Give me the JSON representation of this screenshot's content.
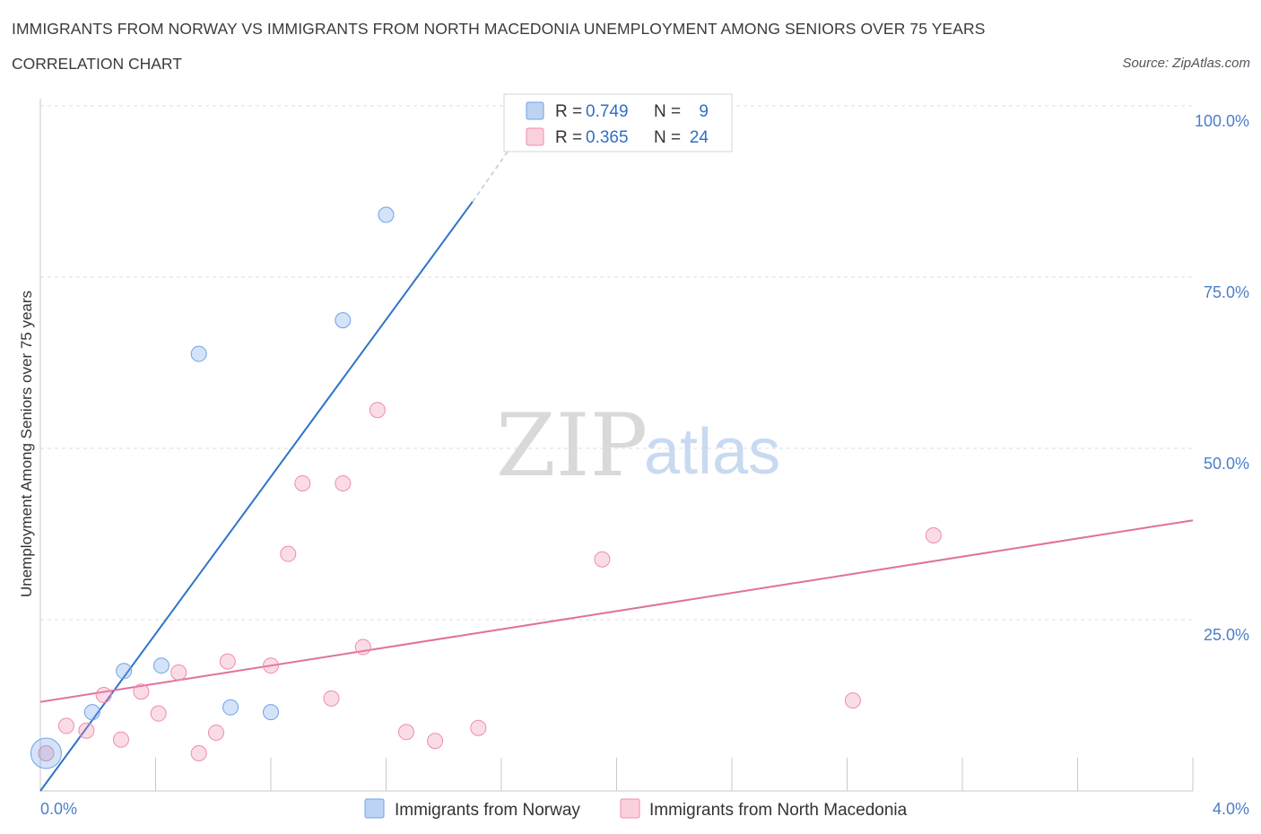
{
  "header": {
    "title": "IMMIGRANTS FROM NORWAY VS IMMIGRANTS FROM NORTH MACEDONIA UNEMPLOYMENT AMONG SENIORS OVER 75 YEARS",
    "subtitle": "CORRELATION CHART",
    "source": "Source: ZipAtlas.com"
  },
  "watermark": {
    "zip": "ZIP",
    "atlas": "atlas"
  },
  "chart_data": {
    "type": "scatter",
    "ylabel": "Unemployment Among Seniors over 75 years",
    "xlim": [
      0,
      4.0
    ],
    "ylim": [
      0,
      100
    ],
    "x_tick_labels": [
      "0.0%",
      "4.0%"
    ],
    "y_ticks": [
      25,
      50,
      75,
      100
    ],
    "y_tick_labels": [
      "25.0%",
      "50.0%",
      "75.0%",
      "100.0%"
    ],
    "colors": {
      "norway": "#6fa3e8",
      "macedonia": "#f08cab",
      "norway_line": "#2f74c8",
      "macedonia_line": "#e0719a"
    },
    "legend": [
      {
        "r_label": "R =",
        "r_value": "0.749",
        "n_label": "N =",
        "n_value": "9"
      },
      {
        "r_label": "R =",
        "r_value": "0.365",
        "n_label": "N =",
        "n_value": "24"
      }
    ],
    "series": [
      {
        "name": "Immigrants from Norway",
        "points": [
          {
            "x": 0.02,
            "y": 5.5,
            "big": true
          },
          {
            "x": 0.18,
            "y": 11.5
          },
          {
            "x": 0.29,
            "y": 17.5
          },
          {
            "x": 0.42,
            "y": 18.3
          },
          {
            "x": 0.55,
            "y": 63.8
          },
          {
            "x": 0.66,
            "y": 12.2
          },
          {
            "x": 0.8,
            "y": 11.5
          },
          {
            "x": 1.05,
            "y": 68.7
          },
          {
            "x": 1.2,
            "y": 84.1
          }
        ],
        "trend": {
          "x0": 0.0,
          "y0": 0.0,
          "x1": 1.5,
          "y1": 86.0,
          "x_dash_end": 1.65,
          "y_dash_end": 95.0
        }
      },
      {
        "name": "Immigrants from North Macedonia",
        "points": [
          {
            "x": 0.02,
            "y": 5.5
          },
          {
            "x": 0.09,
            "y": 9.5
          },
          {
            "x": 0.16,
            "y": 8.8
          },
          {
            "x": 0.22,
            "y": 14.0
          },
          {
            "x": 0.28,
            "y": 7.5
          },
          {
            "x": 0.35,
            "y": 14.5
          },
          {
            "x": 0.41,
            "y": 11.3
          },
          {
            "x": 0.48,
            "y": 17.3
          },
          {
            "x": 0.55,
            "y": 5.5
          },
          {
            "x": 0.61,
            "y": 8.5
          },
          {
            "x": 0.65,
            "y": 18.9
          },
          {
            "x": 0.8,
            "y": 18.3
          },
          {
            "x": 0.86,
            "y": 34.6
          },
          {
            "x": 0.91,
            "y": 44.9
          },
          {
            "x": 1.01,
            "y": 13.5
          },
          {
            "x": 1.05,
            "y": 44.9
          },
          {
            "x": 1.12,
            "y": 21.0
          },
          {
            "x": 1.17,
            "y": 55.6
          },
          {
            "x": 1.27,
            "y": 8.6
          },
          {
            "x": 1.37,
            "y": 7.3
          },
          {
            "x": 1.52,
            "y": 9.2
          },
          {
            "x": 1.95,
            "y": 33.8
          },
          {
            "x": 2.82,
            "y": 13.2
          },
          {
            "x": 3.1,
            "y": 37.3
          }
        ],
        "trend": {
          "x0": 0.0,
          "y0": 13.0,
          "x1": 4.0,
          "y1": 39.5
        }
      }
    ]
  }
}
